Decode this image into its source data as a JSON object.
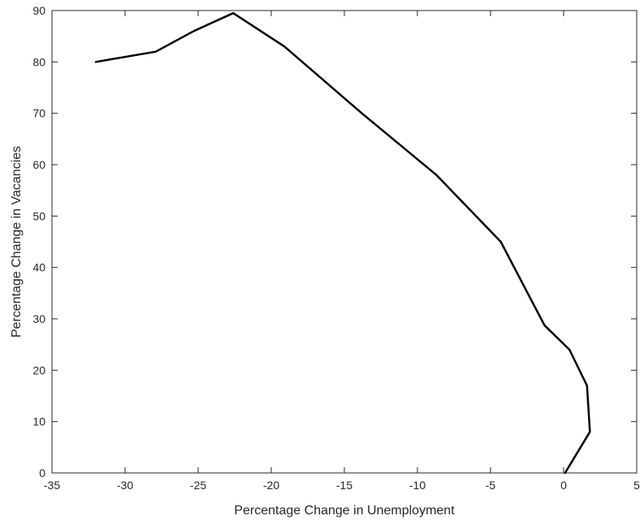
{
  "chart_data": {
    "type": "line",
    "title": "",
    "xlabel": "Percentage Change in Unemployment",
    "ylabel": "Percentage Change in Vacancies",
    "xlim": [
      -35,
      5
    ],
    "ylim": [
      0,
      90
    ],
    "xticks": [
      -35,
      -30,
      -25,
      -20,
      -15,
      -10,
      -5,
      0,
      5
    ],
    "yticks": [
      0,
      10,
      20,
      30,
      40,
      50,
      60,
      70,
      80,
      90
    ],
    "grid": false,
    "colors": {
      "line": "#000000",
      "axis": "#262626"
    },
    "series": [
      {
        "x": [
          0.1,
          1.8,
          1.6,
          0.4,
          -1.3,
          -4.3,
          -8.7,
          -13.8,
          -19.1,
          -22.6,
          -25.3,
          -27.9,
          -32.0
        ],
        "y": [
          0.0,
          8.0,
          17.0,
          24.0,
          28.7,
          45.0,
          58.0,
          70.0,
          83.0,
          89.5,
          86.0,
          82.0,
          80.0
        ]
      }
    ]
  }
}
